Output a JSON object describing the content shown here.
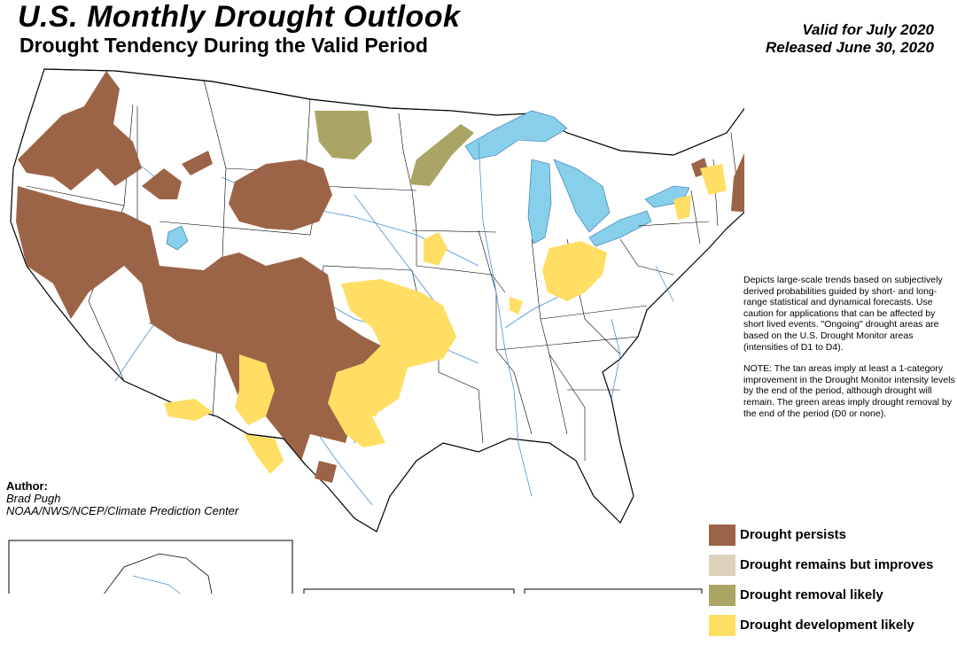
{
  "header": {
    "title": "U.S. Monthly Drought Outlook",
    "subtitle": "Drought Tendency During the Valid Period",
    "valid_for": "Valid for July 2020",
    "released": "Released June 30, 2020"
  },
  "description": {
    "paragraph1": "Depicts large-scale trends based on subjectively derived probabilities guided by short- and long-range statistical and dynamical forecasts. Use caution for applications that can be affected by short lived events. \"Ongoing\" drought areas are based on the U.S. Drought Monitor areas (intensities of D1 to D4).",
    "paragraph2": "NOTE: The tan areas imply at least a 1-category improvement in the Drought Monitor intensity levels by the end of the period, although drought will remain. The green areas imply drought removal by the end of the period (D0 or none)."
  },
  "author": {
    "label": "Author:",
    "name": "Brad Pugh",
    "org": "NOAA/NWS/NCEP/Climate Prediction Center"
  },
  "legend": [
    {
      "label": "Drought persists",
      "color": "#9c6446"
    },
    {
      "label": "Drought remains but improves",
      "color": "#ded2bc"
    },
    {
      "label": "Drought removal likely",
      "color": "#aaa564"
    },
    {
      "label": "Drought development likely",
      "color": "#ffde63"
    }
  ],
  "colors": {
    "persists": "#9c6446",
    "removal": "#aaa564",
    "development": "#ffde63",
    "water": "#87cfea",
    "rivers": "#4a90d9",
    "borders": "#000000"
  }
}
